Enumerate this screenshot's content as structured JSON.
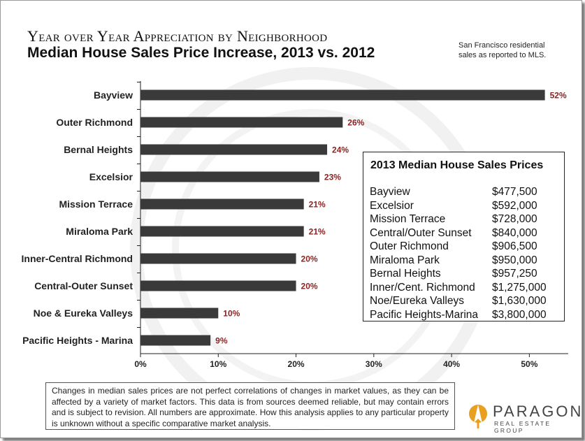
{
  "header": {
    "title": "Year over Year Appreciation  by Neighborhood",
    "subtitle": "Median House Sales Price Increase, 2013 vs. 2012",
    "source_line1": "San Francisco residential",
    "source_line2": "sales as reported to MLS."
  },
  "chart_data": {
    "type": "bar",
    "orientation": "horizontal",
    "categories": [
      "Bayview",
      "Outer Richmond",
      "Bernal Heights",
      "Excelsior",
      "Mission Terrace",
      "Miraloma Park",
      "Inner-Central Richmond",
      "Central-Outer Sunset",
      "Noe & Eureka Valleys",
      "Pacific Heights - Marina"
    ],
    "values": [
      52,
      26,
      24,
      23,
      21,
      21,
      20,
      20,
      10,
      9
    ],
    "data_labels": [
      "52%",
      "26%",
      "24%",
      "23%",
      "21%",
      "21%",
      "20%",
      "20%",
      "10%",
      "9%"
    ],
    "xlim": [
      0,
      55
    ],
    "xticks": [
      0,
      10,
      20,
      30,
      40,
      50
    ],
    "xtick_labels": [
      "0%",
      "10%",
      "20%",
      "30%",
      "40%",
      "50%"
    ],
    "grid": false,
    "bar_color": "#3a3a3a",
    "label_color": "#8b2323"
  },
  "price_table": {
    "title": "2013 Median House Sales Prices",
    "rows": [
      {
        "name": "Bayview",
        "price": "$477,500"
      },
      {
        "name": "Excelsior",
        "price": "$592,000"
      },
      {
        "name": "Mission Terrace",
        "price": "$728,000"
      },
      {
        "name": "Central/Outer Sunset",
        "price": "$840,000"
      },
      {
        "name": "Outer Richmond",
        "price": "$906,500"
      },
      {
        "name": "Miraloma Park",
        "price": "$950,000"
      },
      {
        "name": "Bernal Heights",
        "price": "$957,250"
      },
      {
        "name": "Inner/Cent. Richmond",
        "price": "$1,275,000"
      },
      {
        "name": "Noe/Eureka Valleys",
        "price": "$1,630,000"
      },
      {
        "name": "Pacific Heights-Marina",
        "price": "$3,800,000"
      }
    ]
  },
  "footnote": "Changes in median sales prices are not perfect correlations of changes in market values, as they can be affected by a variety of market factors. This data is from sources deemed reliable, but may contain errors and is subject to revision. All numbers are approximate. How this analysis applies to any particular property is unknown without a specific comparative market analysis.",
  "logo": {
    "word": "PARAGON",
    "tagline": "REAL ESTATE GROUP"
  }
}
